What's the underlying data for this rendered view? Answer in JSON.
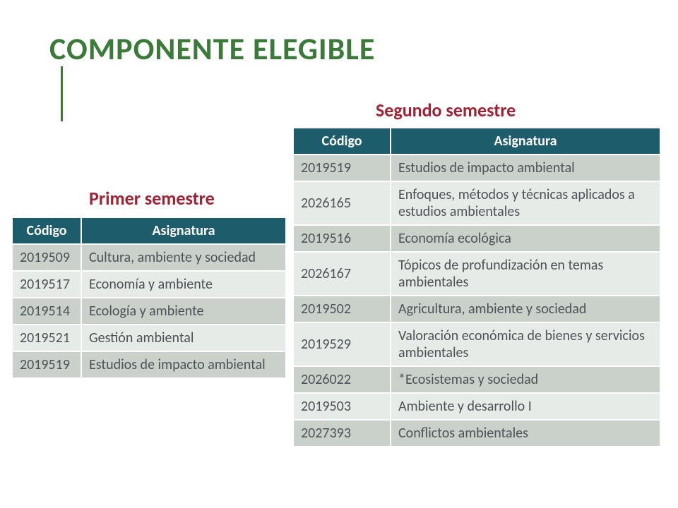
{
  "colors": {
    "title": "#3c7a3a",
    "rule": "#3c7a3a",
    "semester_label": "#a02233",
    "th_bg": "#1d5d6b",
    "th_text": "#ffffff",
    "row_odd_bg": "#cad1ca",
    "row_even_bg": "#e7ebe7",
    "cell_text": "#4a5357"
  },
  "title": "COMPONENTE ELEGIBLE",
  "semesters": [
    {
      "label": "Primer semestre",
      "columns": [
        "Código",
        "Asignatura"
      ],
      "rows": [
        [
          "2019509",
          "Cultura, ambiente y sociedad"
        ],
        [
          "2019517",
          "Economía y ambiente"
        ],
        [
          "2019514",
          "Ecología y ambiente"
        ],
        [
          "2019521",
          "Gestión ambiental"
        ],
        [
          "2019519",
          "Estudios de impacto ambiental"
        ]
      ]
    },
    {
      "label": "Segundo semestre",
      "columns": [
        "Código",
        "Asignatura"
      ],
      "rows": [
        [
          "2019519",
          "Estudios de impacto ambiental"
        ],
        [
          "2026165",
          "Enfoques, métodos y técnicas aplicados a estudios ambientales"
        ],
        [
          "2019516",
          "Economía ecológica"
        ],
        [
          "2026167",
          "Tópicos de profundización en temas ambientales"
        ],
        [
          "2019502",
          "Agricultura, ambiente y sociedad"
        ],
        [
          "2019529",
          "Valoración económica de bienes y servicios ambientales"
        ],
        [
          "2026022",
          "*Ecosistemas y sociedad"
        ],
        [
          "2019503",
          "Ambiente y desarrollo I"
        ],
        [
          "2027393",
          "Conflictos ambientales"
        ]
      ]
    }
  ]
}
